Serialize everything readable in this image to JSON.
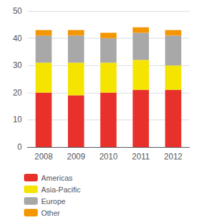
{
  "chart_data": {
    "type": "bar",
    "stacked": true,
    "categories": [
      "2008",
      "2009",
      "2010",
      "2011",
      "2012"
    ],
    "series": [
      {
        "name": "Americas",
        "color": "#e8312a",
        "values": [
          20,
          19,
          20,
          21,
          21
        ]
      },
      {
        "name": "Asia-Pacific",
        "color": "#f5e400",
        "values": [
          11,
          12,
          11,
          11,
          9
        ]
      },
      {
        "name": "Europe",
        "color": "#a8a8a8",
        "values": [
          10,
          10,
          9,
          10,
          11
        ]
      },
      {
        "name": "Other",
        "color": "#f49600",
        "values": [
          2,
          2,
          2,
          2,
          2
        ]
      }
    ],
    "ylim": [
      0,
      50
    ],
    "yticks": [
      0,
      10,
      20,
      30,
      40,
      50
    ],
    "grid": true,
    "legend": "bottom"
  }
}
